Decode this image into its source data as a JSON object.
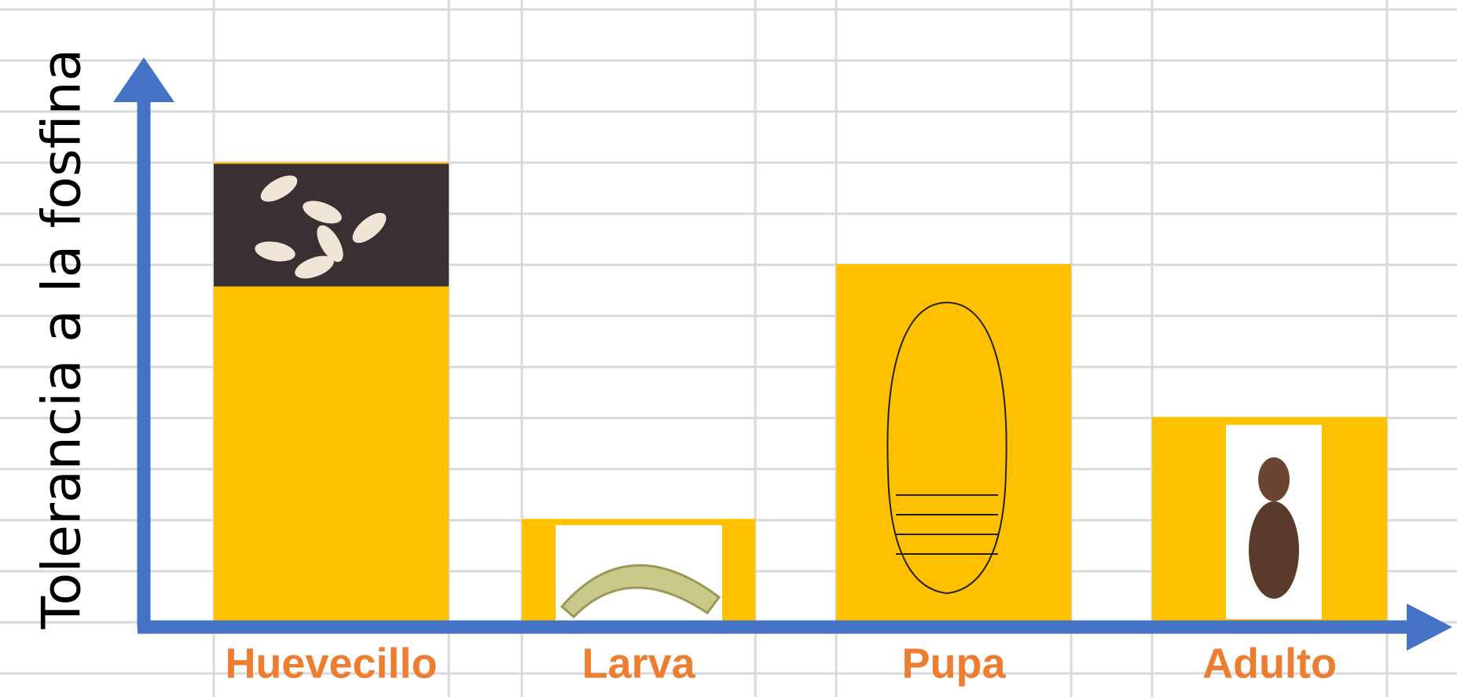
{
  "chart_data": {
    "type": "bar",
    "ylabel": "Tolerancia a la fosfina",
    "categories": [
      "Huevecillo",
      "Larva",
      "Pupa",
      "Adulto"
    ],
    "values": [
      9,
      2,
      7,
      4
    ],
    "color": "#ffc000",
    "label_color": "#ed7d31",
    "axis_color": "#4472c4",
    "ylim": [
      0,
      12
    ]
  }
}
